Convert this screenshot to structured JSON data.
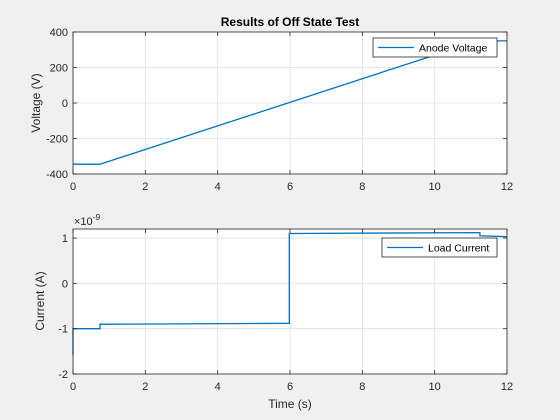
{
  "figure": {
    "background": "#f0f0f0",
    "axes_bg": "#ffffff",
    "line_color": "#0072bd",
    "grid_color": "#dfdfdf"
  },
  "chart_data": [
    {
      "type": "line",
      "title": "Results of Off State Test",
      "xlabel": "",
      "ylabel": "Voltage (V)",
      "xlim": [
        0,
        12
      ],
      "ylim": [
        -400,
        400
      ],
      "grid": true,
      "legend": "top-right",
      "x_ticks": [
        "0",
        "2",
        "4",
        "6",
        "8",
        "10",
        "12"
      ],
      "y_ticks": [
        "-400",
        "-200",
        "0",
        "200",
        "400"
      ],
      "exponent_label": "",
      "series": [
        {
          "name": "Anode Voltage",
          "color": "#0072bd",
          "x": [
            0,
            0.75,
            10,
            10.6,
            11.3,
            12
          ],
          "y": [
            -345,
            -345,
            270,
            320,
            350,
            350
          ]
        }
      ]
    },
    {
      "type": "line",
      "title": "",
      "xlabel": "Time (s)",
      "ylabel": "Current (A)",
      "xlim": [
        0,
        12
      ],
      "ylim": [
        -2,
        1.2
      ],
      "grid": true,
      "legend": "top-right",
      "x_ticks": [
        "0",
        "2",
        "4",
        "6",
        "8",
        "10",
        "12"
      ],
      "y_ticks": [
        "-2",
        "-1",
        "0",
        "1"
      ],
      "exponent_label": "×10",
      "exponent_power": "-9",
      "series": [
        {
          "name": "Load Current",
          "color": "#0072bd",
          "x": [
            0,
            0,
            0.02,
            0.75,
            0.75,
            1,
            5.98,
            5.98,
            6.0,
            11.25,
            11.25,
            12
          ],
          "y": [
            -1.58,
            -1.0,
            -1.0,
            -1.0,
            -0.9,
            -0.9,
            -0.88,
            1.1,
            1.1,
            1.12,
            1.05,
            1.03
          ]
        }
      ]
    }
  ]
}
